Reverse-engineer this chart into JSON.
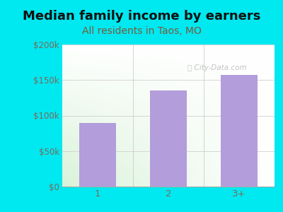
{
  "title": "Median family income by earners",
  "subtitle": "All residents in Taos, MO",
  "categories": [
    "1",
    "2",
    "3+"
  ],
  "values": [
    90000,
    135000,
    157000
  ],
  "bar_color": "#b39ddb",
  "title_fontsize": 13,
  "subtitle_fontsize": 10,
  "subtitle_color": "#7a5c3a",
  "title_color": "#111111",
  "tick_color": "#7a6a5a",
  "ylim": [
    0,
    200000
  ],
  "yticks": [
    0,
    50000,
    100000,
    150000,
    200000
  ],
  "ytick_labels": [
    "$0",
    "$50k",
    "$100k",
    "$150k",
    "$200k"
  ],
  "background_outer": "#00e8f0",
  "watermark": "City-Data.com",
  "grid_color": "#cccccc",
  "plot_bg_top": "#ffffff",
  "plot_bg_bottom_left": "#d4eeda"
}
